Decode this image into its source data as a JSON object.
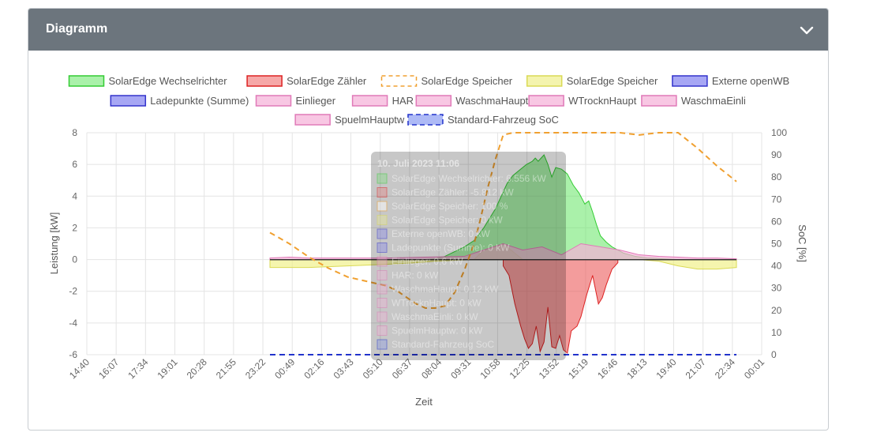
{
  "card": {
    "title": "Diagramm"
  },
  "colors": {
    "header_bg": "#6c757d",
    "pv": "#33cc33",
    "grid": "#dd2222",
    "storage_soc": "#f0a030",
    "storage_power": "#e6e633",
    "openwb": "#3333cc",
    "consumers": "#ee88cc",
    "soc_vehicle": "#2233cc"
  },
  "icons": {
    "collapse": "chevron-down-icon"
  },
  "chart_data": {
    "type": "area",
    "xlabel": "Zeit",
    "ylabel": "Leistung [kW]",
    "y2label": "SoC [%]",
    "ylim": [
      -6,
      8
    ],
    "y2lim": [
      0,
      100
    ],
    "yticks": [
      "8",
      "6",
      "4",
      "2",
      "0",
      "-2",
      "-4",
      "-6"
    ],
    "y2ticks": [
      "100",
      "90",
      "80",
      "70",
      "60",
      "50",
      "40",
      "30",
      "20",
      "10",
      "0"
    ],
    "xticks": [
      "14:40",
      "16:07",
      "17:34",
      "19:01",
      "20:28",
      "21:55",
      "23:22",
      "00:49",
      "02:16",
      "03:43",
      "05:10",
      "06:37",
      "08:04",
      "09:31",
      "10:58",
      "12:25",
      "13:52",
      "15:19",
      "16:46",
      "18:13",
      "19:40",
      "21:07",
      "22:34",
      "00:01"
    ],
    "legend": [
      "SolarEdge Wechselrichter",
      "SolarEdge Zähler",
      "SolarEdge Speicher",
      "SolarEdge Speicher",
      "Externe openWB",
      "Ladepunkte (Summe)",
      "Einlieger",
      "HAR",
      "WaschmaHaupt",
      "WTrocknHaupt",
      "WaschmaEinli",
      "SpuelmHauptw",
      "Standard-Fahrzeug SoC"
    ],
    "grid": true,
    "legend_position": "top",
    "x_unit": "hours",
    "series": [
      {
        "name": "SolarEdge Wechselrichter",
        "axis": "kW",
        "x": [
          7.9,
          8.5,
          9,
          9.5,
          10,
          10.5,
          11,
          11.3,
          11.6,
          11.9,
          12.2,
          12.5,
          12.8,
          13.0,
          13.2,
          13.35,
          13.5,
          13.65,
          13.8,
          13.95,
          14.1,
          14.3,
          14.5,
          14.7,
          15.0,
          15.3,
          15.6,
          15.9,
          16.2,
          16.4,
          16.6,
          16.8,
          17.0,
          17.3,
          17.6,
          17.9,
          18.2,
          18.5,
          18.8,
          19.1,
          19.4,
          19.8,
          20.2,
          20.6,
          21.0,
          21.5,
          22.0,
          22.5,
          23.0
        ],
        "values": [
          0,
          0.05,
          0.2,
          0.5,
          0.8,
          1.2,
          2.0,
          2.6,
          3.2,
          4.0,
          4.8,
          5.3,
          5.6,
          5.8,
          6.0,
          6.1,
          6.2,
          6.4,
          6.2,
          6.4,
          6.6,
          6.0,
          5.2,
          5.8,
          5.7,
          5.4,
          4.7,
          4.2,
          3.5,
          3.7,
          3.0,
          2.2,
          1.5,
          1.1,
          0.8,
          0.6,
          0.4,
          0.3,
          0.2,
          0.15,
          0.1,
          0.08,
          0.05,
          0.02,
          0,
          0,
          0,
          0,
          0
        ]
      },
      {
        "name": "SolarEdge Zähler",
        "axis": "kW",
        "x": [
          12.0,
          12.3,
          12.6,
          12.9,
          13.1,
          13.3,
          13.5,
          13.7,
          13.9,
          14.1,
          14.3,
          14.5,
          14.7,
          14.9,
          15.1,
          15.3,
          15.5,
          15.8,
          16.0,
          16.3,
          16.6,
          16.9,
          17.1,
          17.3,
          17.6,
          17.9
        ],
        "values": [
          -0.4,
          -1.0,
          -2.8,
          -4.2,
          -5.0,
          -5.6,
          -5.3,
          -4.2,
          -5.8,
          -5.2,
          -3.0,
          -5.5,
          -5.6,
          -4.8,
          -5.7,
          -5.9,
          -4.5,
          -4.2,
          -3.6,
          -2.2,
          -1.0,
          -2.8,
          -2.4,
          -1.6,
          -0.6,
          -0.2
        ]
      },
      {
        "name": "SolarEdge Speicher",
        "axis": "%",
        "x": [
          0.0,
          1.0,
          2.0,
          3.0,
          4.0,
          5.0,
          6.0,
          6.5,
          7.0,
          7.5,
          8.0,
          8.5,
          9.0,
          9.5,
          10.0,
          10.5,
          10.8,
          11.2,
          11.6,
          12.0,
          12.5,
          13.0,
          14.0,
          15.0,
          16.0,
          17.0,
          18.0,
          19.0,
          20.0,
          21.0,
          22.0,
          23.0,
          24.0
        ],
        "values": [
          55,
          50,
          44,
          39,
          35,
          33,
          31,
          29,
          26,
          23,
          21,
          21,
          22,
          28,
          38,
          50,
          60,
          75,
          88,
          99,
          100,
          100,
          100,
          100,
          100,
          100,
          100,
          99,
          100,
          100,
          93,
          85,
          78
        ]
      },
      {
        "name": "SolarEdge Speicher",
        "axis": "kW",
        "x": [
          0.0,
          2.0,
          4.0,
          6.0,
          7.5,
          8.5,
          9.5,
          10.5,
          11.0,
          12.0,
          13.0,
          16.0,
          19.0,
          20.0,
          21.0,
          22.0,
          23.0,
          24.0
        ],
        "values": [
          -0.5,
          -0.5,
          -0.4,
          -0.3,
          -0.2,
          -0.1,
          -0.05,
          0,
          0.6,
          1.0,
          0,
          0,
          0,
          -0.1,
          -0.4,
          -0.6,
          -0.6,
          -0.5
        ]
      },
      {
        "name": "Externe openWB",
        "axis": "kW",
        "x": [
          0,
          24
        ],
        "values": [
          0,
          0
        ]
      },
      {
        "name": "Ladepunkte (Summe)",
        "axis": "kW",
        "x": [
          0,
          24
        ],
        "values": [
          0,
          0
        ]
      },
      {
        "name": "Einlieger",
        "axis": "kW",
        "x": [
          0,
          1,
          2,
          4,
          6,
          8,
          10,
          11,
          12,
          13,
          14,
          15,
          16,
          18,
          19,
          20,
          21,
          22,
          23,
          24
        ],
        "values": [
          0.1,
          0.15,
          0.1,
          0.1,
          0.1,
          0.15,
          0.2,
          0.6,
          1.0,
          0.6,
          0.8,
          0.3,
          1.0,
          0.6,
          0.3,
          0.2,
          0.15,
          0.1,
          0.1,
          0.05
        ]
      },
      {
        "name": "HAR",
        "axis": "kW",
        "x": [
          0,
          24
        ],
        "values": [
          0,
          0
        ]
      },
      {
        "name": "WaschmaHaupt",
        "axis": "kW",
        "x": [
          0,
          24
        ],
        "values": [
          0,
          0
        ]
      },
      {
        "name": "WTrocknHaupt",
        "axis": "kW",
        "x": [
          0,
          24
        ],
        "values": [
          0,
          0
        ]
      },
      {
        "name": "WaschmaEinli",
        "axis": "kW",
        "x": [
          0,
          24
        ],
        "values": [
          0,
          0
        ]
      },
      {
        "name": "SpuelmHauptw",
        "axis": "kW",
        "x": [
          0,
          24
        ],
        "values": [
          0,
          0
        ]
      },
      {
        "name": "Standard-Fahrzeug SoC",
        "axis": "%",
        "x": [
          0,
          24
        ],
        "values": [
          0,
          0
        ]
      }
    ],
    "tooltip": {
      "title": "10. Juli 2023 11:06",
      "lines": [
        "SolarEdge Wechselrichter: 6.556 kW",
        "SolarEdge Zähler: -5.812 kW",
        "SolarEdge Speicher: 100 %",
        "SolarEdge Speicher: 0 kW",
        "Externe openWB: 0 kW",
        "Ladepunkte (Summe): 0 kW",
        "Einlieger: 0.6 kW",
        "HAR: 0 kW",
        "WaschmaHaupt: 0.12 kW",
        "WTrocknHaupt: 0 kW",
        "WaschmaEinli: 0 kW",
        "SpuelmHauptw: 0 kW",
        "Standard-Fahrzeug SoC"
      ]
    }
  }
}
